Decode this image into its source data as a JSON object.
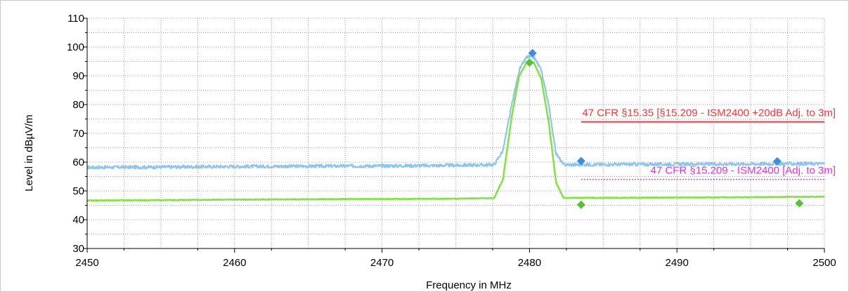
{
  "chart_data": {
    "type": "line",
    "title": "",
    "xlabel": "Frequency in MHz",
    "ylabel": "Level in dBµV/m",
    "xlim": [
      2450,
      2500
    ],
    "ylim": [
      30,
      110
    ],
    "xticks": [
      2450,
      2460,
      2470,
      2480,
      2490,
      2500
    ],
    "yticks": [
      30,
      40,
      50,
      60,
      70,
      80,
      90,
      100,
      110
    ],
    "grid": true,
    "colors": {
      "peak_trace": "#8ec5ee",
      "average_trace": "#86e04a",
      "peak_marker": "#3c8fd8",
      "average_marker": "#55c23a",
      "limit_qp": "#ee3a3a",
      "limit_avg": "#dd33dd",
      "grid": "#a0a0a0"
    },
    "series": [
      {
        "style": "peak",
        "x": [
          2450,
          2455,
          2460,
          2465,
          2470,
          2475,
          2477.6,
          2478.2,
          2478.8,
          2479.3,
          2479.8,
          2480.3,
          2480.8,
          2481.3,
          2481.8,
          2482.3,
          2485,
          2490,
          2495,
          2500
        ],
        "y": [
          58.2,
          58.3,
          58.5,
          58.6,
          58.7,
          58.9,
          59.1,
          64,
          80,
          92,
          96.5,
          96.5,
          92,
          80,
          63,
          59.1,
          59.2,
          59.3,
          59.4,
          59.5
        ]
      },
      {
        "style": "average",
        "x": [
          2450,
          2455,
          2460,
          2465,
          2470,
          2475,
          2477.6,
          2478.2,
          2478.8,
          2479.3,
          2479.8,
          2480.3,
          2480.8,
          2481.3,
          2481.8,
          2482.3,
          2485,
          2490,
          2495,
          2500
        ],
        "y": [
          46.7,
          46.8,
          47,
          47.1,
          47.2,
          47.3,
          47.5,
          54,
          76,
          90,
          94.5,
          94.5,
          89,
          74,
          53,
          47.6,
          47.6,
          47.7,
          47.8,
          48
        ]
      }
    ],
    "markers": [
      {
        "style": "peak",
        "x": 2480.2,
        "y": 97.9
      },
      {
        "style": "peak",
        "x": 2483.5,
        "y": 60.4
      },
      {
        "style": "peak",
        "x": 2496.8,
        "y": 60.3
      },
      {
        "style": "average",
        "x": 2480,
        "y": 94.6
      },
      {
        "style": "average",
        "x": 2483.5,
        "y": 45.2
      },
      {
        "style": "average",
        "x": 2498.3,
        "y": 45.7
      }
    ],
    "limits": [
      {
        "label": "47 CFR §15.35 [§15.209 - ISM2400 +20dB Adj. to 3m]",
        "x_start": 2483.5,
        "x_end": 2500,
        "y": 74,
        "style": "qp"
      },
      {
        "label": "47 CFR §15.209 - ISM2400 [Adj. to 3m]",
        "x_start": 2483.5,
        "x_end": 2500,
        "y": 54,
        "style": "avg"
      }
    ]
  }
}
